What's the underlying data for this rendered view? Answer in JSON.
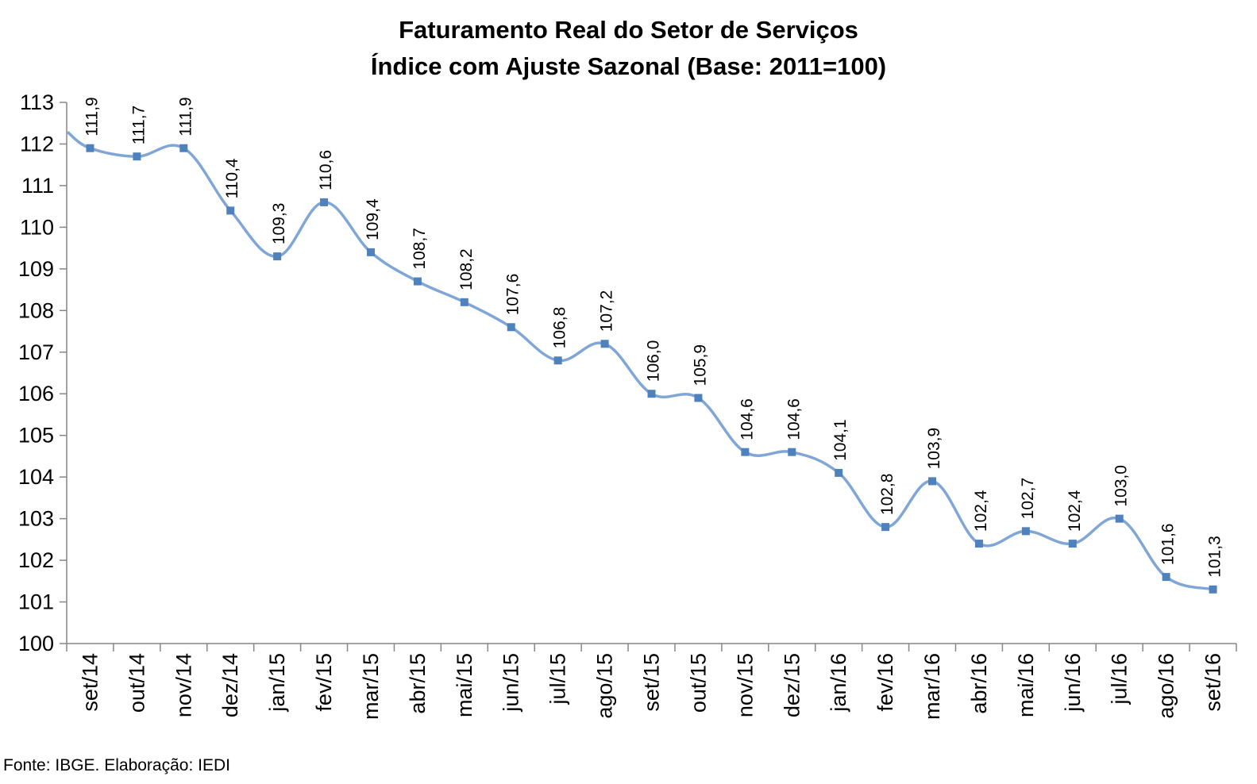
{
  "chart_data": {
    "type": "line",
    "title": "Faturamento Real do Setor de Serviços",
    "subtitle": "Índice com Ajuste Sazonal (Base: 2011=100)",
    "xlabel": "",
    "ylabel": "",
    "ylim": [
      100,
      113
    ],
    "yticks": [
      "100",
      "101",
      "102",
      "103",
      "104",
      "105",
      "106",
      "107",
      "108",
      "109",
      "110",
      "111",
      "112",
      "113"
    ],
    "categories": [
      "set/14",
      "out/14",
      "nov/14",
      "dez/14",
      "jan/15",
      "fev/15",
      "mar/15",
      "abr/15",
      "mai/15",
      "jun/15",
      "jul/15",
      "ago/15",
      "set/15",
      "out/15",
      "nov/15",
      "dez/15",
      "jan/16",
      "fev/16",
      "mar/16",
      "abr/16",
      "mai/16",
      "jun/16",
      "jul/16",
      "ago/16",
      "set/16"
    ],
    "series": [
      {
        "values": [
          111.9,
          111.7,
          111.9,
          110.4,
          109.3,
          110.6,
          109.4,
          108.7,
          108.2,
          107.6,
          106.8,
          107.2,
          106.0,
          105.9,
          104.6,
          104.6,
          104.1,
          102.8,
          103.9,
          102.4,
          102.7,
          102.4,
          103.0,
          101.6,
          101.3
        ],
        "labels": [
          "111,9",
          "111,7",
          "111,9",
          "110,4",
          "109,3",
          "110,6",
          "109,4",
          "108,7",
          "108,2",
          "107,6",
          "106,8",
          "107,2",
          "106,0",
          "105,9",
          "104,6",
          "104,6",
          "104,1",
          "102,8",
          "103,9",
          "102,4",
          "102,7",
          "102,4",
          "103,0",
          "101,6",
          "101,3"
        ],
        "color": "#4f81bd",
        "line_color": "#7fa6d6",
        "marker": "square",
        "smooth": true
      }
    ],
    "grid": false,
    "legend": "none"
  },
  "source": "Fonte: IBGE. Elaboração: IEDI"
}
